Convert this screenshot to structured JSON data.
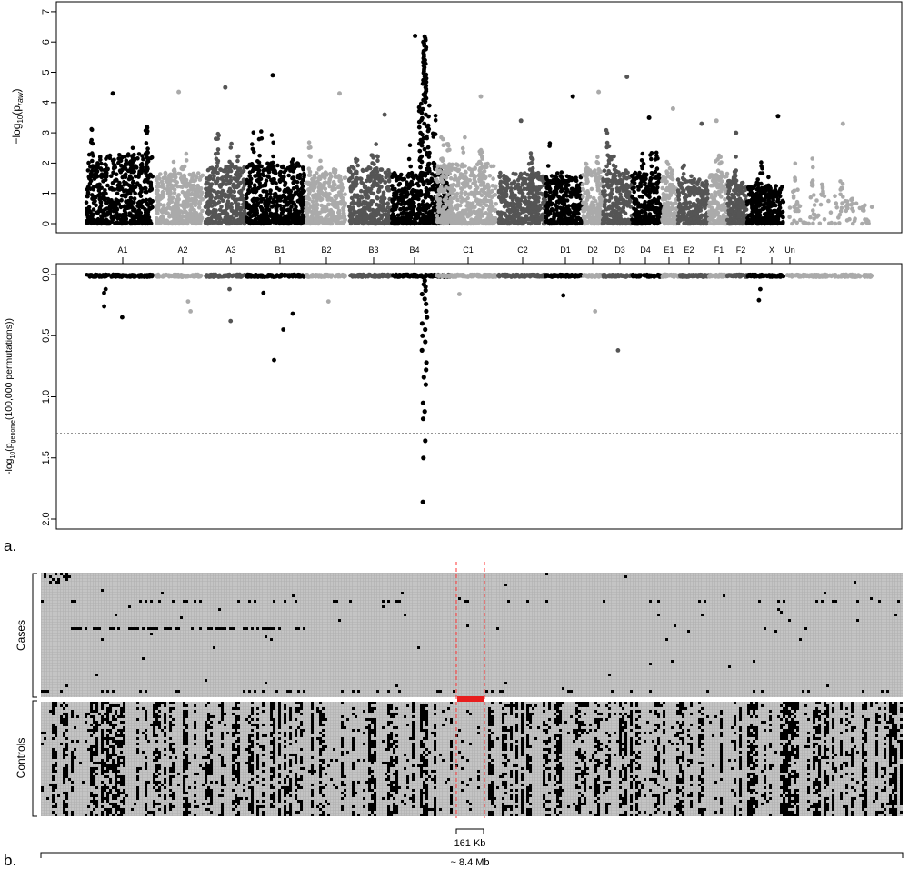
{
  "panel_a_label": "a.",
  "panel_b_label": "b.",
  "chart_data": [
    {
      "type": "scatter",
      "panel": "a-top",
      "ylabel": "-log10(p_raw)",
      "ylabel_parts": {
        "prefix": "−log",
        "sub": "10",
        "mid": "(p",
        "psub": "raw",
        "suffix": ")"
      },
      "ylim": [
        0,
        7
      ],
      "yticks": [
        0,
        1,
        2,
        3,
        4,
        5,
        6,
        7
      ],
      "grid": false,
      "chromosomes": [
        {
          "label": "A1",
          "color": "#000000",
          "max": 4.3,
          "typ": 2.2
        },
        {
          "label": "A2",
          "color": "#aaaaaa",
          "max": 4.35,
          "typ": 1.6
        },
        {
          "label": "A3",
          "color": "#555555",
          "max": 4.5,
          "typ": 1.8
        },
        {
          "label": "B1",
          "color": "#000000",
          "max": 4.9,
          "typ": 1.9
        },
        {
          "label": "B2",
          "color": "#aaaaaa",
          "max": 4.3,
          "typ": 1.6
        },
        {
          "label": "B3",
          "color": "#555555",
          "max": 3.6,
          "typ": 1.8
        },
        {
          "label": "B4",
          "color": "#000000",
          "max": 6.2,
          "typ": 1.6
        },
        {
          "label": "C1",
          "color": "#aaaaaa",
          "max": 4.2,
          "typ": 1.9
        },
        {
          "label": "C2",
          "color": "#555555",
          "max": 3.4,
          "typ": 1.6
        },
        {
          "label": "D1",
          "color": "#000000",
          "max": 4.2,
          "typ": 1.5
        },
        {
          "label": "D2",
          "color": "#aaaaaa",
          "max": 4.35,
          "typ": 1.7
        },
        {
          "label": "D3",
          "color": "#555555",
          "max": 4.85,
          "typ": 1.7
        },
        {
          "label": "D4",
          "color": "#000000",
          "max": 3.5,
          "typ": 1.6
        },
        {
          "label": "E1",
          "color": "#aaaaaa",
          "max": 3.8,
          "typ": 1.5
        },
        {
          "label": "E2",
          "color": "#555555",
          "max": 3.3,
          "typ": 1.4
        },
        {
          "label": "F1",
          "color": "#aaaaaa",
          "max": 3.4,
          "typ": 1.6
        },
        {
          "label": "F2",
          "color": "#555555",
          "max": 3.0,
          "typ": 1.4
        },
        {
          "label": "X",
          "color": "#000000",
          "max": 3.55,
          "typ": 1.2
        },
        {
          "label": "Un",
          "color": "#aaaaaa",
          "max": 3.3,
          "typ": 0.6
        }
      ]
    },
    {
      "type": "scatter",
      "panel": "a-bottom",
      "ylabel": "-log10(p_genome(100,000 permutations))",
      "ylabel_parts": {
        "prefix": "-log",
        "sub": "10",
        "mid": "(p",
        "psub": "genome",
        "suffix": "(100,000 permutations))"
      },
      "ylim": [
        0,
        2
      ],
      "yticks": [
        "0.0",
        "0.5",
        "1.0",
        "1.5",
        "2.0"
      ],
      "inverted": true,
      "threshold": 1.3,
      "threshold_style": "dotted",
      "values_B4": [
        0.02,
        0.05,
        0.08,
        0.1,
        0.13,
        0.16,
        0.2,
        0.24,
        0.3,
        0.35,
        0.4,
        0.45,
        0.5,
        0.55,
        0.62,
        0.72,
        0.78,
        0.84,
        0.9,
        1.05,
        1.12,
        1.18,
        1.36,
        1.5,
        1.86
      ],
      "other_points": [
        {
          "chr": "A1",
          "value": 0.26
        },
        {
          "chr": "A1",
          "value": 0.12
        },
        {
          "chr": "A1",
          "value": 0.15
        },
        {
          "chr": "A1",
          "value": 0.35
        },
        {
          "chr": "A2",
          "value": 0.3
        },
        {
          "chr": "A2",
          "value": 0.22
        },
        {
          "chr": "A3",
          "value": 0.38
        },
        {
          "chr": "A3",
          "value": 0.12
        },
        {
          "chr": "B1",
          "value": 0.45
        },
        {
          "chr": "B1",
          "value": 0.7
        },
        {
          "chr": "B1",
          "value": 0.32
        },
        {
          "chr": "B1",
          "value": 0.15
        },
        {
          "chr": "B2",
          "value": 0.22
        },
        {
          "chr": "C1",
          "value": 0.16
        },
        {
          "chr": "D1",
          "value": 0.17
        },
        {
          "chr": "D2",
          "value": 0.3
        },
        {
          "chr": "D3",
          "value": 0.62
        },
        {
          "chr": "X",
          "value": 0.21
        },
        {
          "chr": "X",
          "value": 0.12
        }
      ]
    },
    {
      "type": "heatmap",
      "panel": "b",
      "row_groups": [
        "Cases",
        "Controls"
      ],
      "case_rows": 13,
      "control_rows": 11,
      "colors": {
        "grid": "#c4c4c4",
        "mark": "#000000",
        "highlight": "#e81e1e",
        "boundary": "#ff3333"
      },
      "region_label": "161 Kb",
      "span_label": "~ 8.4 Mb"
    }
  ]
}
